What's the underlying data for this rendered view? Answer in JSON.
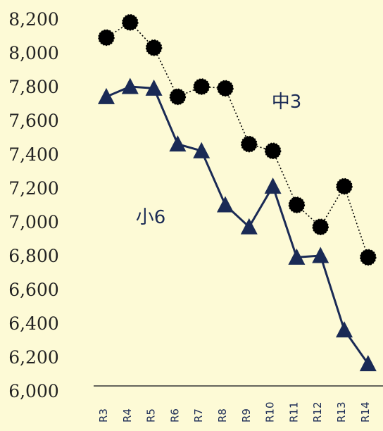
{
  "chart_data": {
    "type": "line",
    "categories": [
      "R3",
      "R4",
      "R5",
      "R6",
      "R7",
      "R8",
      "R9",
      "R10",
      "R11",
      "R12",
      "R13",
      "R14"
    ],
    "ylim": [
      6000,
      8200
    ],
    "yticks": [
      6000,
      6200,
      6400,
      6600,
      6800,
      7000,
      7200,
      7400,
      7600,
      7800,
      8000,
      8200
    ],
    "ytick_labels": [
      "6,000",
      "6,200",
      "6,400",
      "6,600",
      "6,800",
      "7,000",
      "7,200",
      "7,400",
      "7,600",
      "7,800",
      "8,000",
      "8,200"
    ],
    "grid": false,
    "series": [
      {
        "name": "中3",
        "color": "#000000",
        "marker": "circle",
        "line_style": "dotted",
        "values": [
          8090,
          8180,
          8030,
          7740,
          7800,
          7790,
          7460,
          7420,
          7100,
          6970,
          7210,
          6790
        ]
      },
      {
        "name": "小6",
        "color": "#1a2a55",
        "marker": "triangle",
        "line_style": "solid",
        "values": [
          7740,
          7800,
          7790,
          7460,
          7420,
          7100,
          6970,
          7210,
          6790,
          6800,
          6360,
          6160
        ]
      }
    ]
  }
}
